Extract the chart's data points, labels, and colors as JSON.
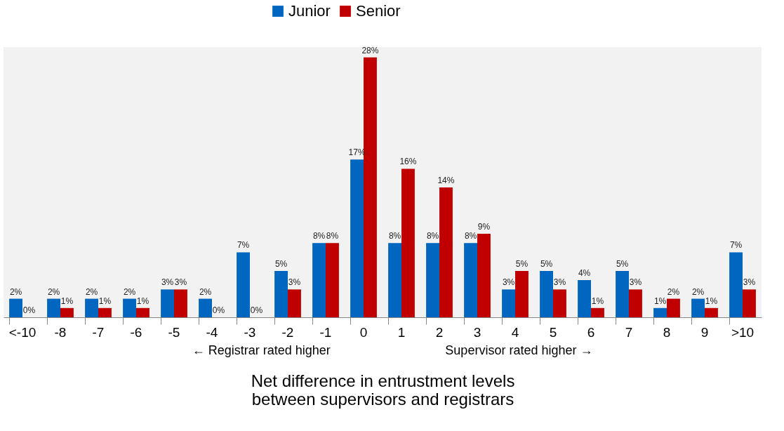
{
  "chart_data": {
    "type": "bar",
    "xlabel": "Net difference in entrustment levels between supervisors and registrars",
    "categories": [
      "<-10",
      "-8",
      "-7",
      "-6",
      "-5",
      "-4",
      "-3",
      "-2",
      "-1",
      "0",
      "1",
      "2",
      "3",
      "4",
      "5",
      "6",
      "7",
      "8",
      "9",
      ">10"
    ],
    "series": [
      {
        "name": "Junior",
        "color": "#0066c0",
        "values": [
          2,
          2,
          2,
          2,
          3,
          2,
          7,
          5,
          8,
          17,
          8,
          8,
          8,
          3,
          5,
          4,
          5,
          1,
          2,
          7
        ],
        "value_labels": [
          "2%",
          "2%",
          "2%",
          "2%",
          "3%",
          "2%",
          "7%",
          "5%",
          "8%",
          "17%",
          "8%",
          "8%",
          "8%",
          "3%",
          "5%",
          "4%",
          "5%",
          "1%",
          "2%",
          "7%"
        ]
      },
      {
        "name": "Senior",
        "color": "#c00000",
        "values": [
          0,
          1,
          1,
          1,
          3,
          0,
          0,
          3,
          8,
          28,
          16,
          14,
          9,
          5,
          3,
          1,
          3,
          2,
          1,
          3
        ],
        "value_labels": [
          "0%",
          "1%",
          "1%",
          "1%",
          "3%",
          "0%",
          "0%",
          "3%",
          "8%",
          "28%",
          "16%",
          "14%",
          "9%",
          "5%",
          "3%",
          "1%",
          "3%",
          "2%",
          "1%",
          "3%"
        ]
      }
    ],
    "annotations": [
      "← Registrar rated higher",
      "Supervisor rated higher →"
    ],
    "legend": "top",
    "grid": false
  }
}
